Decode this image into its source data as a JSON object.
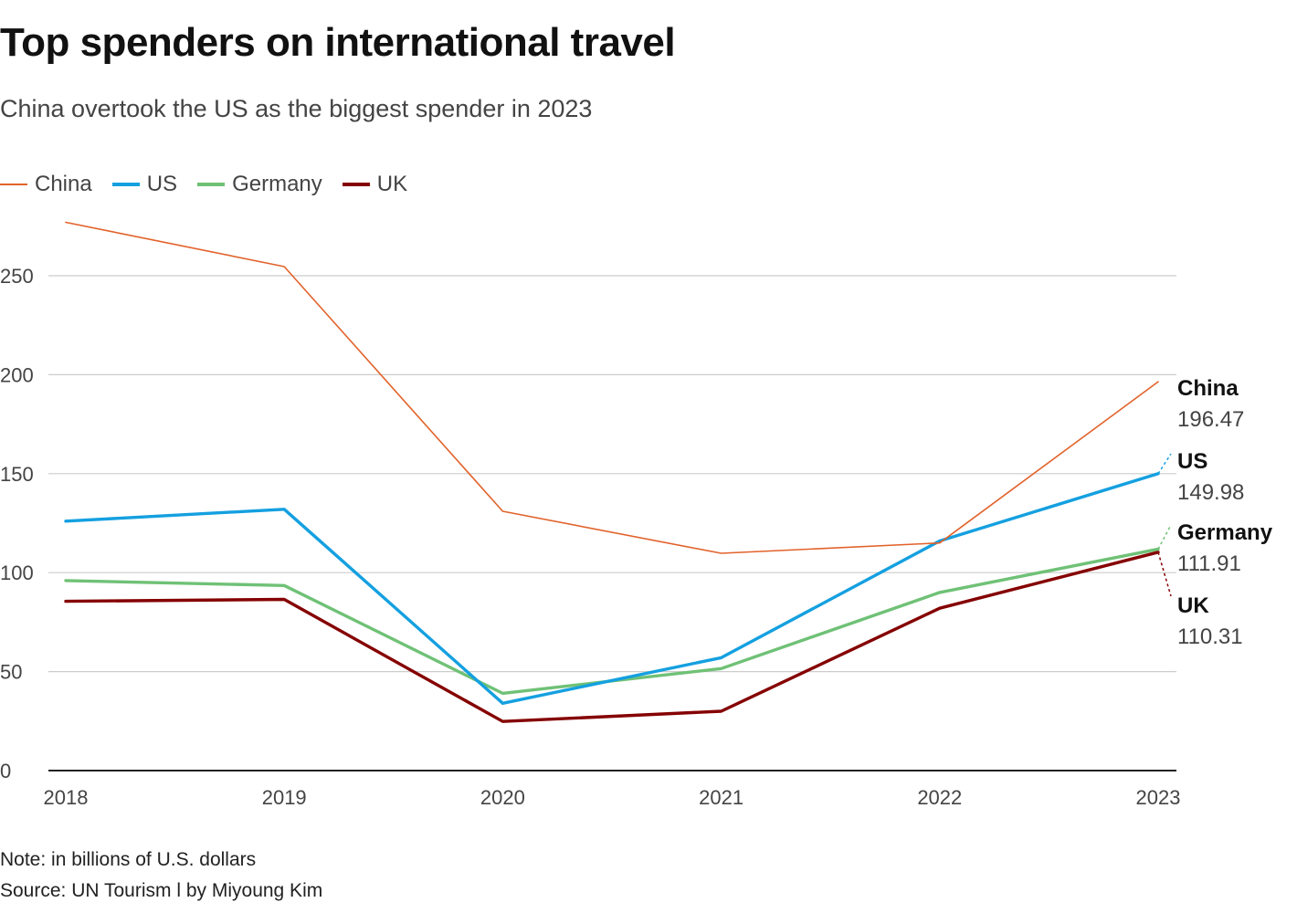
{
  "header": {
    "title": "Top spenders on international travel",
    "subtitle": "China overtook the US as the biggest spender in 2023"
  },
  "footer": {
    "note": "Note: in billions of U.S. dollars",
    "source": "Source: UN Tourism l by Miyoung Kim"
  },
  "chart_data": {
    "type": "line",
    "title": "Top spenders on international travel",
    "subtitle": "China overtook the US as the biggest spender in 2023",
    "xlabel": "",
    "ylabel": "",
    "x": [
      "2018",
      "2019",
      "2020",
      "2021",
      "2022",
      "2023"
    ],
    "ylim": [
      0,
      280
    ],
    "yticks": [
      0,
      50,
      100,
      150,
      200,
      250
    ],
    "yticks_labels": [
      "0",
      "50",
      "100",
      "150",
      "200",
      "250"
    ],
    "grid": true,
    "legend_position": "top-left",
    "series": [
      {
        "name": "China",
        "color": "#e2622b",
        "values": [
          277,
          254.6,
          131,
          109.8,
          115,
          196.47
        ],
        "end_label": "China",
        "end_value": "196.47"
      },
      {
        "name": "US",
        "color": "#14a0e0",
        "values": [
          126,
          132,
          34,
          57,
          116,
          149.98
        ],
        "end_label": "US",
        "end_value": "149.98"
      },
      {
        "name": "Germany",
        "color": "#6fc176",
        "values": [
          96,
          93.5,
          39,
          51.5,
          90,
          111.91
        ],
        "end_label": "Germany",
        "end_value": "111.91"
      },
      {
        "name": "UK",
        "color": "#850000",
        "values": [
          85.5,
          86.5,
          24.8,
          30,
          82,
          110.31
        ],
        "end_label": "UK",
        "end_value": "110.31"
      }
    ]
  }
}
